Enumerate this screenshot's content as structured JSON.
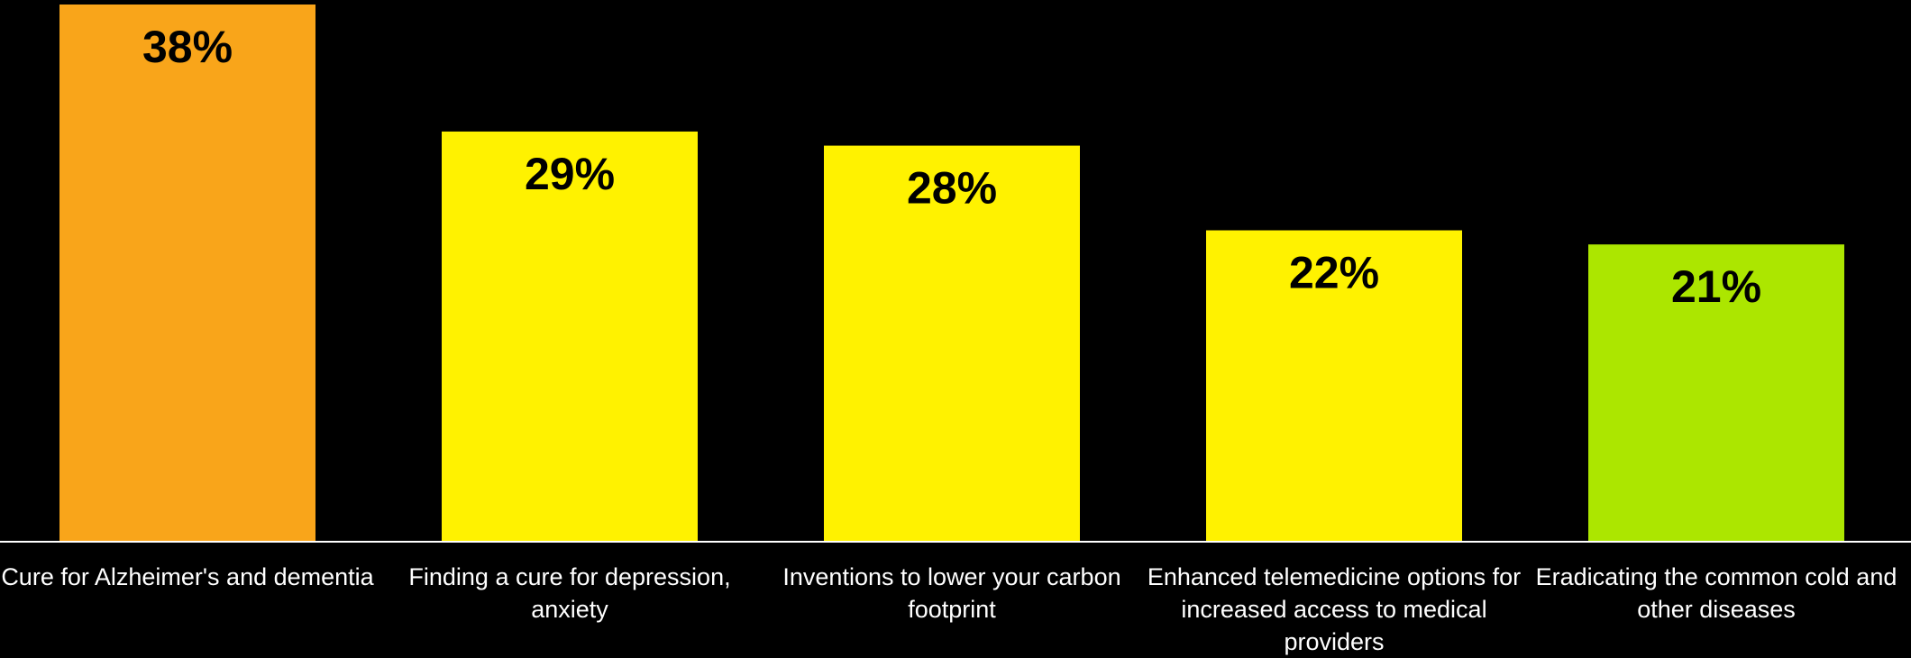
{
  "chart_data": {
    "type": "bar",
    "categories": [
      "Cure for Alzheimer's and dementia",
      "Finding a cure for depression, anxiety",
      "Inventions to lower your carbon footprint",
      "Enhanced telemedicine options for increased access to medical providers",
      "Eradicating the common cold and other diseases"
    ],
    "values": [
      38,
      29,
      28,
      22,
      21
    ],
    "value_labels": [
      "38%",
      "29%",
      "28%",
      "22%",
      "21%"
    ],
    "colors": [
      "#F9A51A",
      "#FFF200",
      "#FFF200",
      "#FFF200",
      "#ACE600"
    ],
    "title": "",
    "xlabel": "",
    "ylabel": "",
    "ylim": [
      0,
      38
    ],
    "grid": false,
    "legend": "none"
  }
}
